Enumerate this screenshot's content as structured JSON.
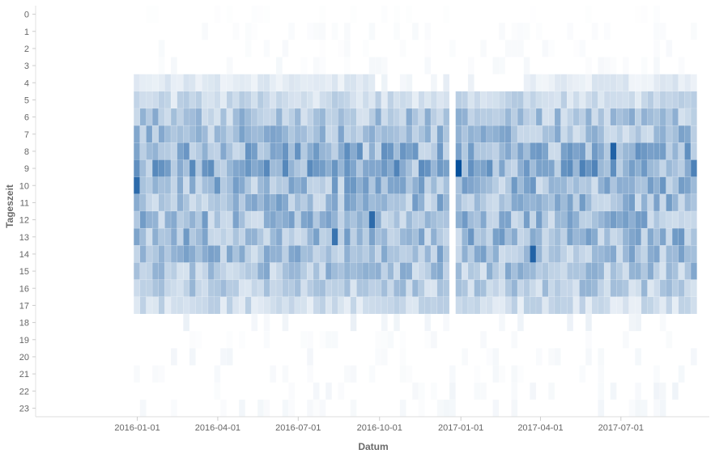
{
  "chart_data": {
    "type": "heatmap",
    "title": "",
    "xlabel": "Datum",
    "ylabel": "Tageszeit",
    "x_range": [
      "2015-09-08",
      "2017-10-09"
    ],
    "x_ticks": [
      "2016-01-01",
      "2016-04-01",
      "2016-07-01",
      "2016-10-01",
      "2017-01-01",
      "2017-04-01",
      "2017-07-01"
    ],
    "y_categories": [
      "0",
      "1",
      "2",
      "3",
      "4",
      "5",
      "6",
      "7",
      "8",
      "9",
      "10",
      "11",
      "12",
      "13",
      "14",
      "15",
      "16",
      "17",
      "18",
      "19",
      "20",
      "21",
      "22",
      "23"
    ],
    "cell_period": "week",
    "data_start": "2015-12-28",
    "data_end": "2017-09-24",
    "value_scale": "relative 0-1 (no colorbar shown)",
    "colormap": [
      "#ffffff",
      "#08519c"
    ],
    "hourly_profile": {
      "hours": [
        0,
        1,
        2,
        3,
        4,
        5,
        6,
        7,
        8,
        9,
        10,
        11,
        12,
        13,
        14,
        15,
        16,
        17,
        18,
        19,
        20,
        21,
        22,
        23
      ],
      "values": [
        0.01,
        0.03,
        0.03,
        0.04,
        0.12,
        0.22,
        0.35,
        0.38,
        0.45,
        0.5,
        0.42,
        0.4,
        0.4,
        0.42,
        0.38,
        0.35,
        0.3,
        0.2,
        0.08,
        0.04,
        0.05,
        0.04,
        0.06,
        0.05
      ]
    },
    "active_hour_range_by_period": [
      {
        "from": "2015-12-28",
        "to": "2016-09-26",
        "first_hour": 4,
        "last_hour": 17
      },
      {
        "from": "2016-09-26",
        "to": "2017-03-20",
        "first_hour": 5,
        "last_hour": 17
      },
      {
        "from": "2017-03-20",
        "to": "2017-09-24",
        "first_hour": 4,
        "last_hour": 17
      }
    ],
    "low_activity_weeks": [
      "2016-12-19"
    ],
    "peak_cells": [
      {
        "week": "2016-12-26",
        "hour": 9,
        "value": 1.0
      },
      {
        "week": "2015-12-28",
        "hour": 10,
        "value": 0.85
      },
      {
        "week": "2017-03-20",
        "hour": 14,
        "value": 0.9
      },
      {
        "week": "2017-06-19",
        "hour": 8,
        "value": 0.9
      },
      {
        "week": "2016-09-19",
        "hour": 12,
        "value": 0.85
      },
      {
        "week": "2016-08-08",
        "hour": 13,
        "value": 0.8
      }
    ],
    "grid": false,
    "legend": "none"
  }
}
